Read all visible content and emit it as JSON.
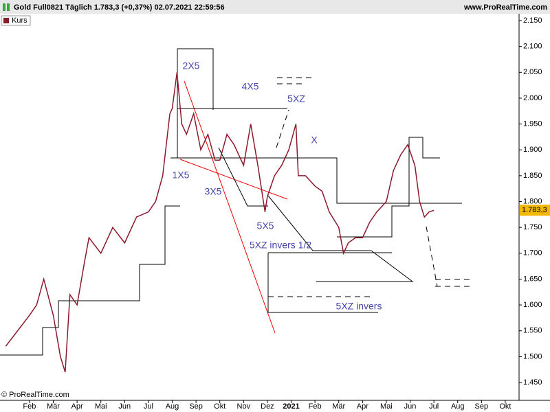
{
  "header": {
    "symbol": "Gold Full0821 Täglich 1.783,3 (+0,37%) 02.07.2021 22:59:56",
    "site": "www.ProRealTime.com"
  },
  "footer": "© ProRealTime.com",
  "chart_data": {
    "type": "line",
    "series": [
      {
        "name": "Kurs",
        "color": "#8b1a2b",
        "x": [
          0,
          0.5,
          1,
          1.3,
          1.6,
          2,
          2.3,
          2.5,
          2.7,
          3,
          3.3,
          3.5,
          4,
          4.5,
          5,
          5.5,
          6,
          6.3,
          6.6,
          6.9,
          7,
          7.2,
          7.4,
          7.6,
          7.9,
          8.2,
          8.5,
          8.8,
          9,
          9.3,
          9.6,
          10,
          10.3,
          10.6,
          10.9,
          11,
          11.3,
          11.6,
          11.9,
          12.2,
          12.3,
          12.6,
          13,
          13.3,
          13.6,
          14,
          14.2,
          14.4,
          14.7,
          15,
          15.3,
          15.6,
          16,
          16.3,
          16.6,
          16.9,
          17.2,
          17.4,
          17.6,
          17.8,
          18
        ],
        "values": [
          1.52,
          1.55,
          1.58,
          1.6,
          1.65,
          1.58,
          1.5,
          1.47,
          1.62,
          1.6,
          1.68,
          1.73,
          1.7,
          1.75,
          1.72,
          1.77,
          1.78,
          1.8,
          1.85,
          1.97,
          1.98,
          2.05,
          1.95,
          1.93,
          1.97,
          1.9,
          1.93,
          1.88,
          1.88,
          1.93,
          1.91,
          1.87,
          1.95,
          1.87,
          1.78,
          1.81,
          1.85,
          1.87,
          1.9,
          1.95,
          1.85,
          1.85,
          1.83,
          1.82,
          1.78,
          1.75,
          1.7,
          1.72,
          1.73,
          1.73,
          1.76,
          1.78,
          1.8,
          1.86,
          1.89,
          1.91,
          1.87,
          1.8,
          1.77,
          1.78,
          1.783
        ]
      }
    ],
    "last_price": {
      "value": 1.7833,
      "label": "1.783,3"
    },
    "xlim": [
      -0.24,
      21.58
    ],
    "xticks": [
      {
        "value": 1,
        "label": "Feb"
      },
      {
        "value": 2,
        "label": "Mär"
      },
      {
        "value": 3,
        "label": "Apr"
      },
      {
        "value": 4,
        "label": "Mai"
      },
      {
        "value": 5,
        "label": "Jun"
      },
      {
        "value": 6,
        "label": "Jul"
      },
      {
        "value": 7,
        "label": "Aug"
      },
      {
        "value": 8,
        "label": "Sep"
      },
      {
        "value": 9,
        "label": "Okt"
      },
      {
        "value": 10,
        "label": "Nov"
      },
      {
        "value": 11,
        "label": "Dez"
      },
      {
        "value": 12,
        "label": "2021"
      },
      {
        "value": 13,
        "label": "Feb"
      },
      {
        "value": 14,
        "label": "Mär"
      },
      {
        "value": 15,
        "label": "Apr"
      },
      {
        "value": 16,
        "label": "Mai"
      },
      {
        "value": 17,
        "label": "Jun"
      },
      {
        "value": 18,
        "label": "Jul"
      },
      {
        "value": 19,
        "label": "Aug"
      },
      {
        "value": 20,
        "label": "Sep"
      },
      {
        "value": 21,
        "label": "Okt"
      }
    ],
    "ylim": [
      1.4155,
      2.1633
    ],
    "yticks": [
      {
        "value": 1.45,
        "label": "1.450"
      },
      {
        "value": 1.5,
        "label": "1.500"
      },
      {
        "value": 1.55,
        "label": "1.550"
      },
      {
        "value": 1.6,
        "label": "1.600"
      },
      {
        "value": 1.65,
        "label": "1.650"
      },
      {
        "value": 1.7,
        "label": "1.700"
      },
      {
        "value": 1.75,
        "label": "1.750"
      },
      {
        "value": 1.8,
        "label": "1.800"
      },
      {
        "value": 1.85,
        "label": "1.850"
      },
      {
        "value": 1.9,
        "label": "1.900"
      },
      {
        "value": 1.95,
        "label": "1.950"
      },
      {
        "value": 2.0,
        "label": "2.000"
      },
      {
        "value": 2.05,
        "label": "2.050"
      },
      {
        "value": 2.1,
        "label": "2.100"
      },
      {
        "value": 2.15,
        "label": "2.150"
      }
    ],
    "annotations": [
      "2X5",
      "4X5",
      "5XZ",
      "X",
      "1X5",
      "3X5",
      "5X5",
      "5XZ invers 1/2",
      "5XZ invers"
    ]
  }
}
